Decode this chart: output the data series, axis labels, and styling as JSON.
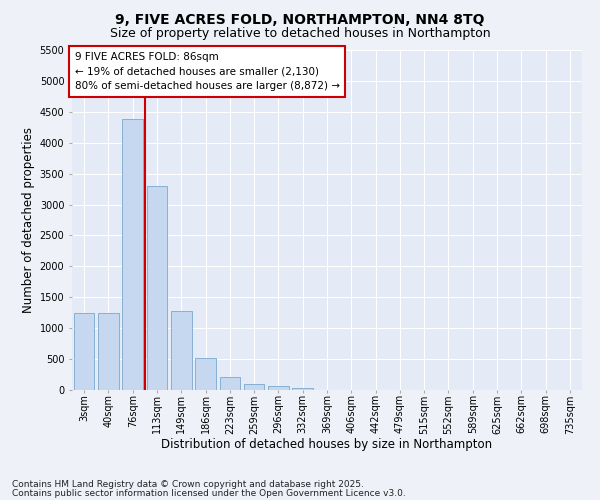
{
  "title1": "9, FIVE ACRES FOLD, NORTHAMPTON, NN4 8TQ",
  "title2": "Size of property relative to detached houses in Northampton",
  "xlabel": "Distribution of detached houses by size in Northampton",
  "ylabel": "Number of detached properties",
  "categories": [
    "3sqm",
    "40sqm",
    "76sqm",
    "113sqm",
    "149sqm",
    "186sqm",
    "223sqm",
    "259sqm",
    "296sqm",
    "332sqm",
    "369sqm",
    "406sqm",
    "442sqm",
    "479sqm",
    "515sqm",
    "552sqm",
    "589sqm",
    "625sqm",
    "662sqm",
    "698sqm",
    "735sqm"
  ],
  "values": [
    1250,
    1250,
    4380,
    3300,
    1280,
    510,
    215,
    100,
    65,
    40,
    0,
    0,
    0,
    0,
    0,
    0,
    0,
    0,
    0,
    0,
    0
  ],
  "bar_color": "#c5d8f0",
  "bar_edge_color": "#7aa8d0",
  "vline_position": 2.5,
  "vline_color": "#cc0000",
  "ylim": [
    0,
    5500
  ],
  "yticks": [
    0,
    500,
    1000,
    1500,
    2000,
    2500,
    3000,
    3500,
    4000,
    4500,
    5000,
    5500
  ],
  "annotation_title": "9 FIVE ACRES FOLD: 86sqm",
  "annotation_line1": "← 19% of detached houses are smaller (2,130)",
  "annotation_line2": "80% of semi-detached houses are larger (8,872) →",
  "annotation_box_color": "#ffffff",
  "annotation_box_edge": "#cc0000",
  "footer1": "Contains HM Land Registry data © Crown copyright and database right 2025.",
  "footer2": "Contains public sector information licensed under the Open Government Licence v3.0.",
  "bg_color": "#eef2f8",
  "plot_bg_color": "#e4eaf6",
  "grid_color": "#ffffff",
  "title_fontsize": 10,
  "subtitle_fontsize": 9,
  "axis_label_fontsize": 8.5,
  "tick_fontsize": 7,
  "annotation_fontsize": 7.5,
  "footer_fontsize": 6.5
}
